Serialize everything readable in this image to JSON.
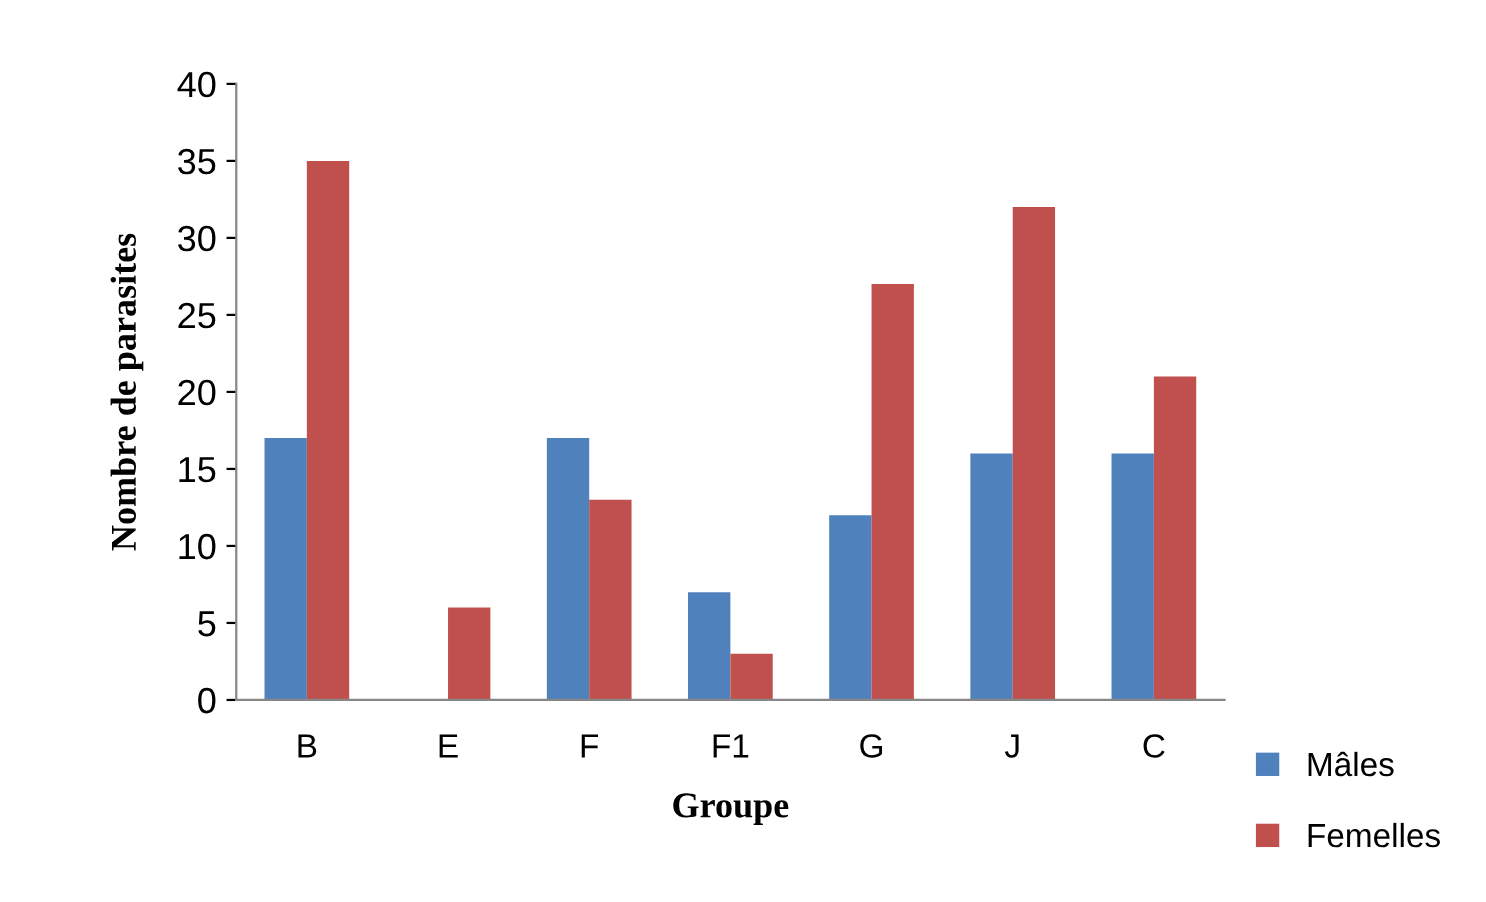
{
  "chart_data": {
    "type": "bar",
    "xlabel": "Groupe",
    "ylabel": "Nombre de parasites",
    "categories": [
      "B",
      "E",
      "F",
      "F1",
      "G",
      "J",
      "C"
    ],
    "series": [
      {
        "name": "Mâles",
        "color": "#4f81bd",
        "values": [
          17,
          0,
          17,
          7,
          12,
          16,
          16
        ]
      },
      {
        "name": "Femelles",
        "color": "#c0504d",
        "values": [
          35,
          6,
          13,
          3,
          27,
          32,
          21
        ]
      }
    ],
    "ylim": [
      0,
      40
    ],
    "yticks": [
      0,
      5,
      10,
      15,
      20,
      25,
      30,
      35,
      40
    ],
    "grid": false,
    "legend": "bottom right"
  }
}
